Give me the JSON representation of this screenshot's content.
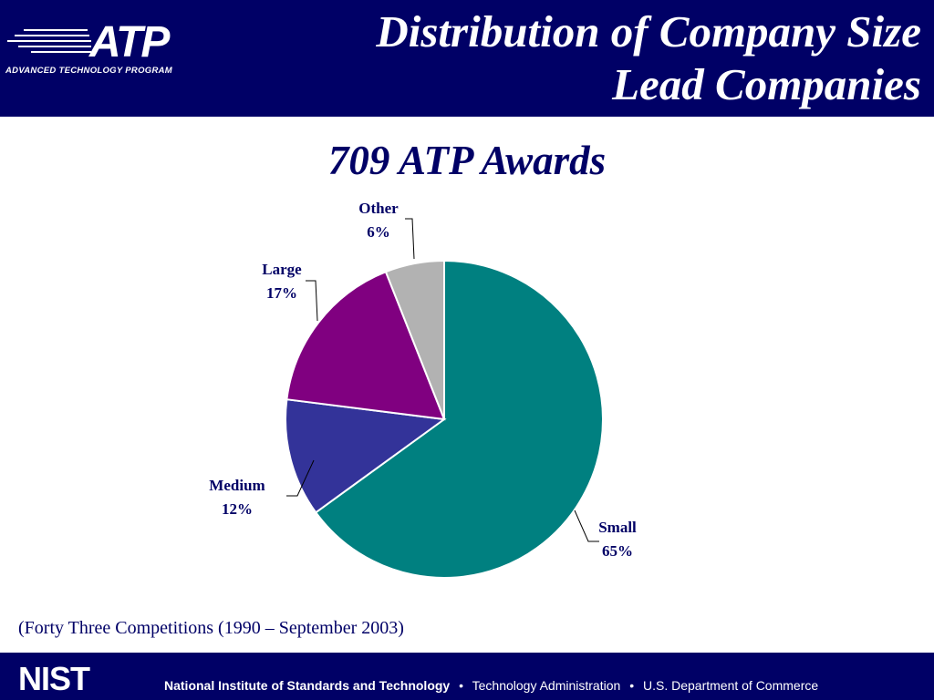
{
  "header": {
    "logo_text": "ATP",
    "logo_subtitle": "ADVANCED TECHNOLOGY PROGRAM",
    "title_line1": "Distribution of Company Size",
    "title_line2": "Lead Companies"
  },
  "chart_data": {
    "type": "pie",
    "title": "709 ATP Awards",
    "unit": "%",
    "slices": [
      {
        "label": "Small",
        "value": 65,
        "value_label": "65%",
        "color": "#008080"
      },
      {
        "label": "Medium",
        "value": 12,
        "value_label": "12%",
        "color": "#333399"
      },
      {
        "label": "Large",
        "value": 17,
        "value_label": "17%",
        "color": "#800080"
      },
      {
        "label": "Other",
        "value": 6,
        "value_label": "6%",
        "color": "#b2b2b2"
      }
    ]
  },
  "note": "(Forty Three Competitions (1990 – September 2003)",
  "footer": {
    "logo_text": "NIST",
    "org": "National Institute of Standards and Technology",
    "agency": "Technology Administration",
    "department": "U.S. Department of Commerce",
    "bullet": "•"
  },
  "colors": {
    "navy": "#000066",
    "teal": "#008080",
    "blue": "#333399",
    "purple": "#800080",
    "gray": "#b2b2b2"
  }
}
